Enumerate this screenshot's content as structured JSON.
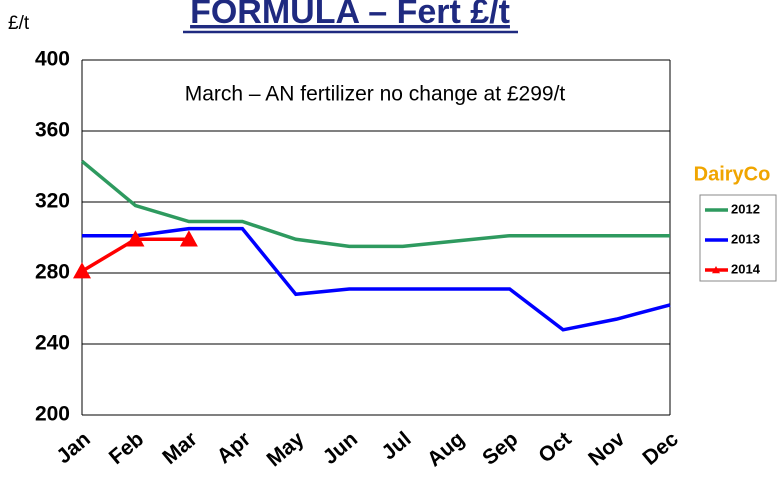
{
  "chart_data": {
    "type": "line",
    "title": "FORMULA – Fert £/t",
    "y_label": "£/t",
    "annotation": "March – AN fertilizer no change at £299/t",
    "logo": "DairyCo",
    "categories": [
      "Jan",
      "Feb",
      "Mar",
      "Apr",
      "May",
      "Jun",
      "Jul",
      "Aug",
      "Sep",
      "Oct",
      "Nov",
      "Dec"
    ],
    "series": [
      {
        "name": "2012",
        "color": "#2e9a5f",
        "values": [
          343,
          318,
          309,
          309,
          299,
          295,
          295,
          298,
          301,
          301,
          301,
          301
        ]
      },
      {
        "name": "2013",
        "color": "#0000ff",
        "values": [
          301,
          301,
          305,
          305,
          268,
          271,
          271,
          271,
          271,
          248,
          254,
          262
        ]
      },
      {
        "name": "2014",
        "color": "#ff0000",
        "marker": "triangle",
        "values": [
          281,
          299,
          299,
          null,
          null,
          null,
          null,
          null,
          null,
          null,
          null,
          null
        ]
      }
    ],
    "ylim": [
      200,
      400
    ],
    "yticks": [
      200,
      240,
      280,
      320,
      360,
      400
    ],
    "grid": true
  }
}
